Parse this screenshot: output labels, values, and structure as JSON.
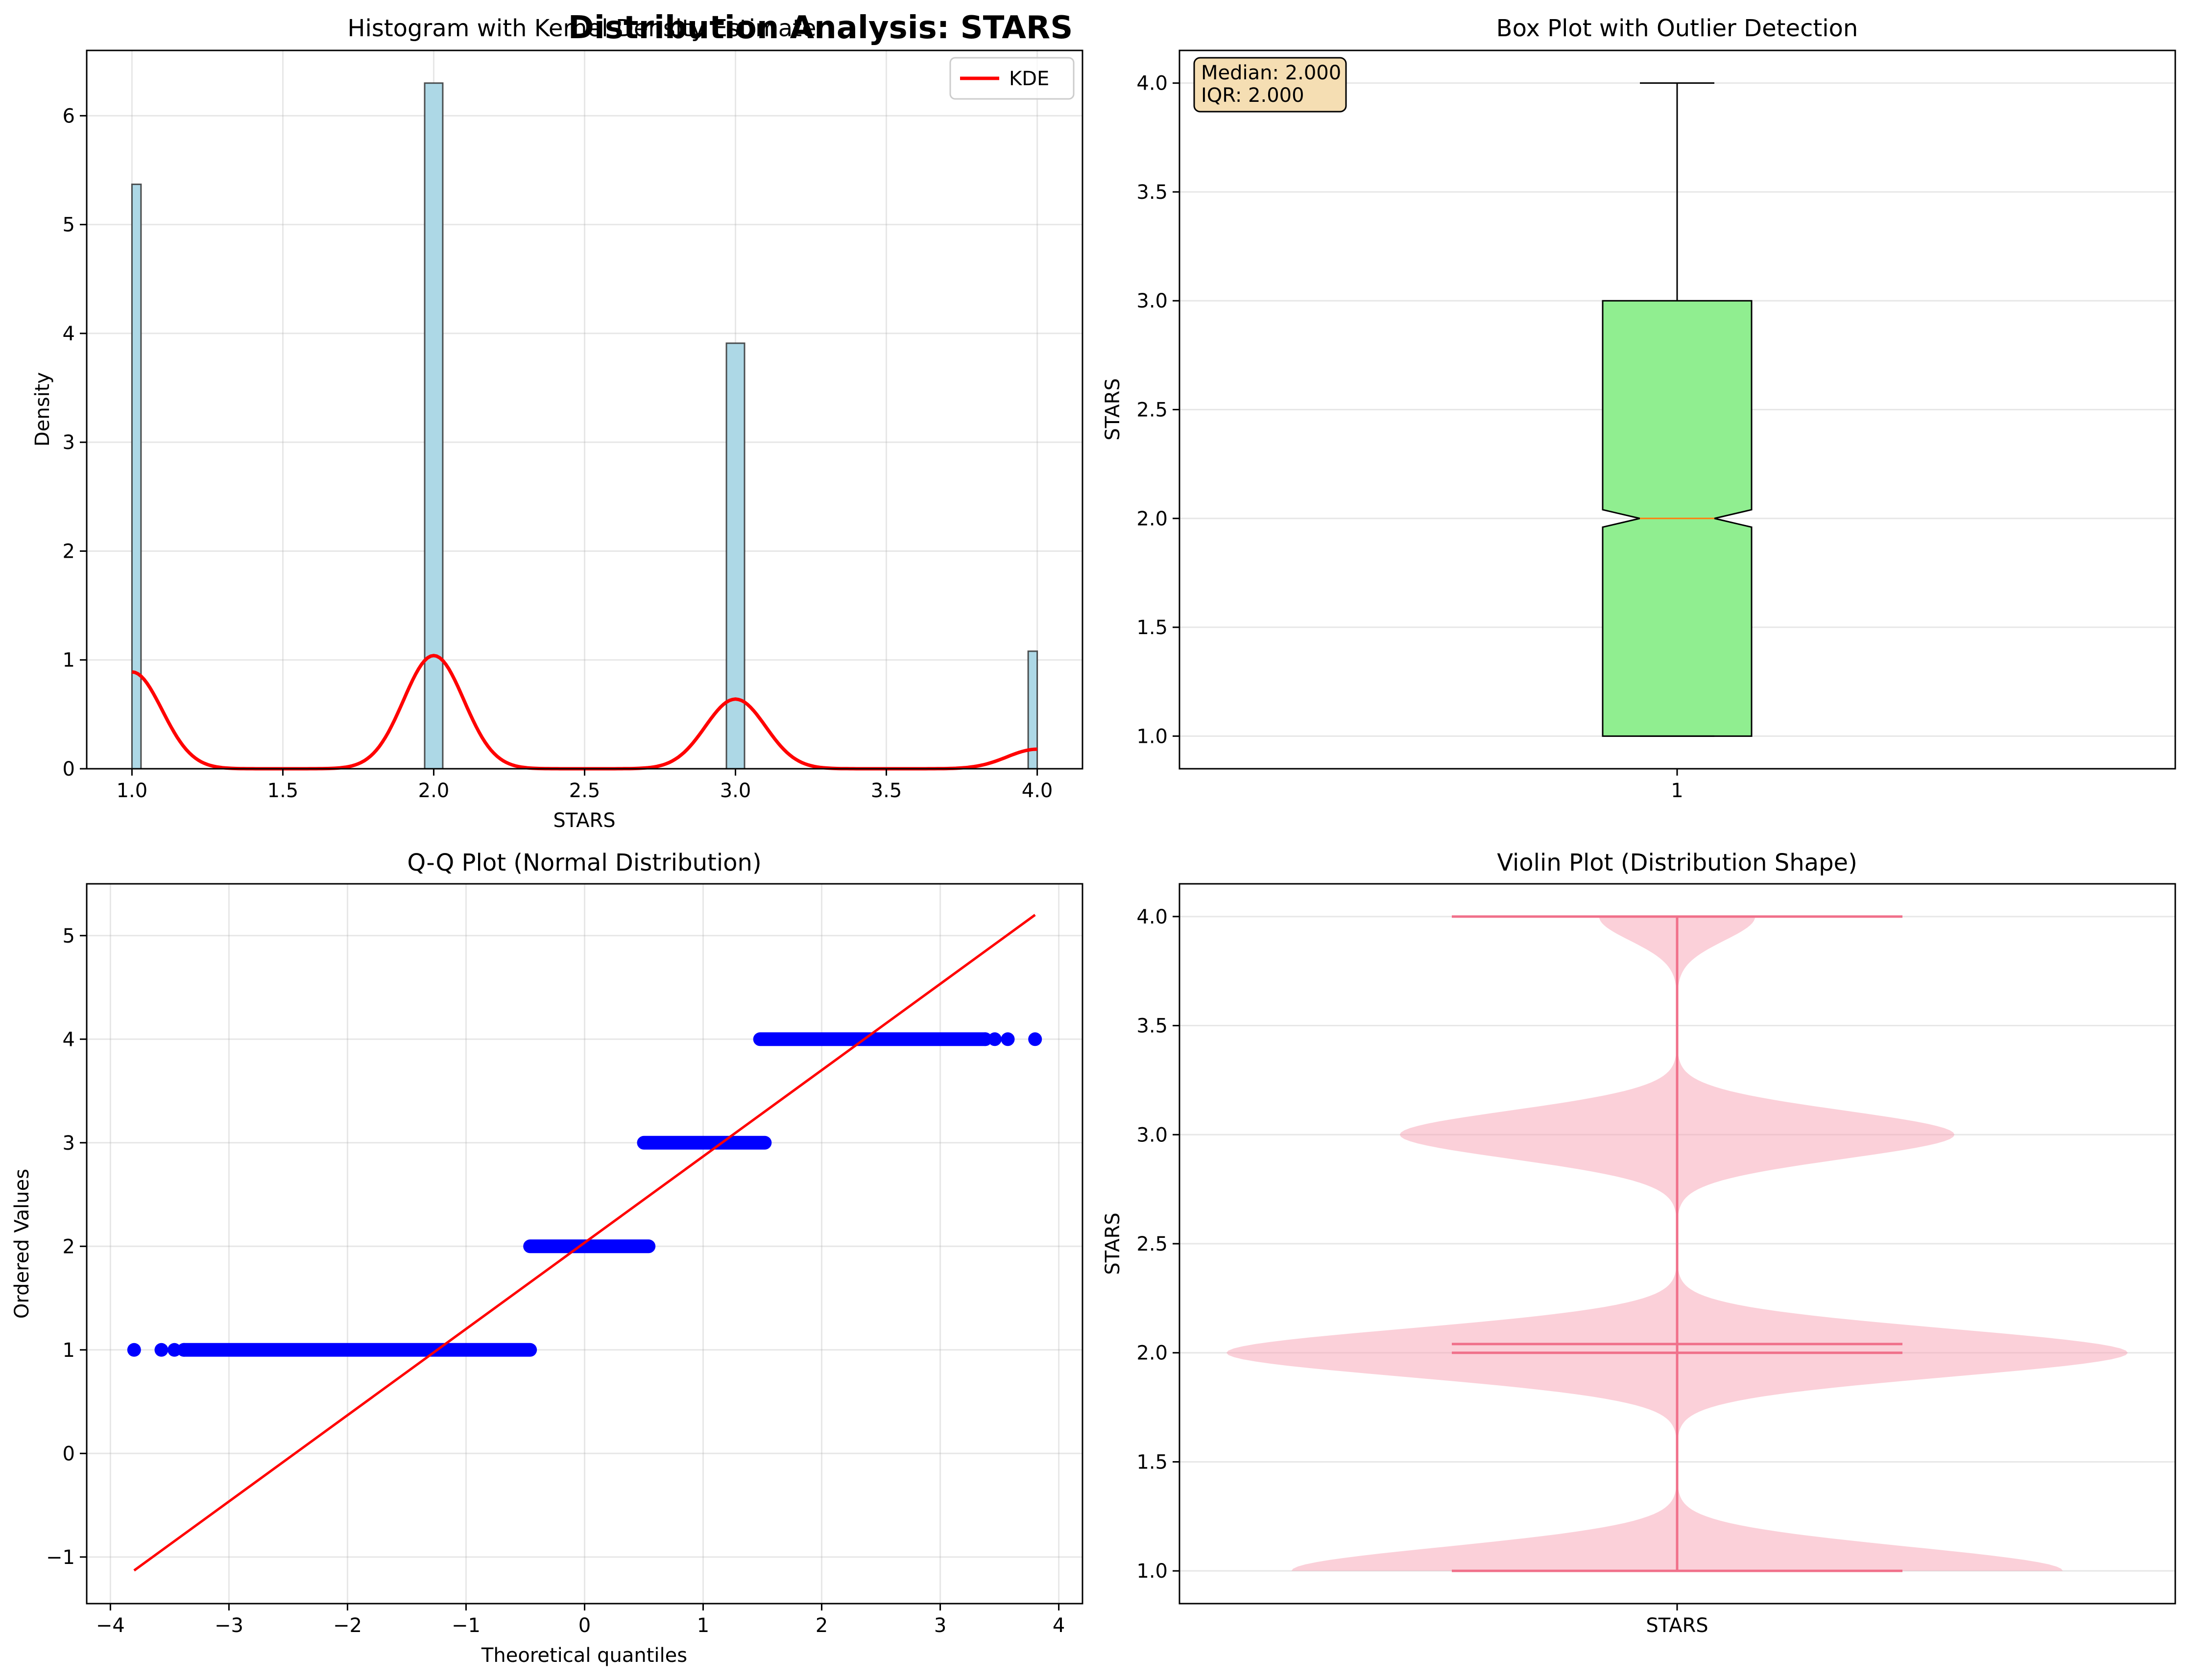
{
  "suptitle": "Distribution Analysis: STARS",
  "colors": {
    "hist_bar": "#add8e6",
    "kde": "#ff0000",
    "box_fill": "#90ee90",
    "box_median": "#ff7f0e",
    "annotation_bg": "#f5deb3",
    "qq_points": "#0000ff",
    "qq_line": "#ff0000",
    "violin_fill": "#f7a1b3",
    "violin_lines": "#f0708a"
  },
  "chart_data": [
    {
      "type": "bar",
      "title": "Histogram with Kernel Density Estimate",
      "xlabel": "STARS",
      "ylabel": "Density",
      "xlim": [
        0.85,
        4.15
      ],
      "ylim": [
        0,
        6.6
      ],
      "grid": true,
      "xticks": [
        "1.0",
        "1.5",
        "2.0",
        "2.5",
        "3.0",
        "3.5",
        "4.0"
      ],
      "yticks": [
        "0",
        "1",
        "2",
        "3",
        "4",
        "5",
        "6"
      ],
      "bars": [
        {
          "x": 1.0,
          "density": 5.37
        },
        {
          "x": 2.0,
          "density": 6.3
        },
        {
          "x": 3.0,
          "density": 3.91
        },
        {
          "x": 4.0,
          "density": 1.08
        }
      ],
      "bar_width": 0.06,
      "kde": {
        "name": "KDE",
        "peaks": [
          {
            "x": 1.0,
            "density": 0.89
          },
          {
            "x": 2.0,
            "density": 1.04
          },
          {
            "x": 3.0,
            "density": 0.64
          },
          {
            "x": 4.0,
            "density": 0.18
          }
        ],
        "bandwidth": 0.1
      },
      "legend": [
        "KDE"
      ],
      "legend_position": "upper-right"
    },
    {
      "type": "box",
      "title": "Box Plot with Outlier Detection",
      "ylabel": "STARS",
      "xticks": [
        "1"
      ],
      "ylim": [
        0.85,
        4.15
      ],
      "yticks": [
        "1.0",
        "1.5",
        "2.0",
        "2.5",
        "3.0",
        "3.5",
        "4.0"
      ],
      "grid": true,
      "stats": {
        "whisker_low": 1.0,
        "q1": 1.0,
        "median": 2.0,
        "q3": 3.0,
        "whisker_high": 4.0,
        "notch_low": 1.96,
        "notch_high": 2.04
      },
      "annotation": [
        "Median: 2.000",
        "IQR: 2.000"
      ]
    },
    {
      "type": "scatter",
      "title": "Q-Q Plot (Normal Distribution)",
      "xlabel": "Theoretical quantiles",
      "ylabel": "Ordered Values",
      "xlim": [
        -4.2,
        4.2
      ],
      "ylim": [
        -1.45,
        5.5
      ],
      "xticks": [
        "−4",
        "−3",
        "−2",
        "−1",
        "0",
        "1",
        "2",
        "3",
        "4"
      ],
      "yticks": [
        "−1",
        "0",
        "1",
        "2",
        "3",
        "4",
        "5"
      ],
      "grid": true,
      "points": [
        {
          "y": 1,
          "x_start": -3.8,
          "x_end": -0.46,
          "isolated": [
            -3.8,
            -3.57,
            -3.46,
            -3.38
          ]
        },
        {
          "y": 2,
          "x_start": -0.46,
          "x_end": 0.54,
          "isolated": []
        },
        {
          "y": 3,
          "x_start": 0.5,
          "x_end": 1.52,
          "isolated": []
        },
        {
          "y": 4,
          "x_start": 1.48,
          "x_end": 3.8,
          "isolated": [
            3.38,
            3.46,
            3.57,
            3.8
          ]
        }
      ],
      "fit_line": {
        "x": [
          -3.8,
          3.8
        ],
        "y": [
          -1.13,
          5.2
        ]
      }
    },
    {
      "type": "violin",
      "title": "Violin Plot (Distribution Shape)",
      "ylabel": "STARS",
      "xticks": [
        "STARS"
      ],
      "ylim": [
        0.85,
        4.15
      ],
      "yticks": [
        "1.0",
        "1.5",
        "2.0",
        "2.5",
        "3.0",
        "3.5",
        "4.0"
      ],
      "grid": true,
      "density_peaks": [
        {
          "y": 1.0,
          "density": 0.89
        },
        {
          "y": 2.0,
          "density": 1.04
        },
        {
          "y": 3.0,
          "density": 0.64
        },
        {
          "y": 4.0,
          "density": 0.18
        }
      ],
      "min": 1.0,
      "max": 4.0,
      "median": 2.0,
      "mean": 2.04
    }
  ]
}
